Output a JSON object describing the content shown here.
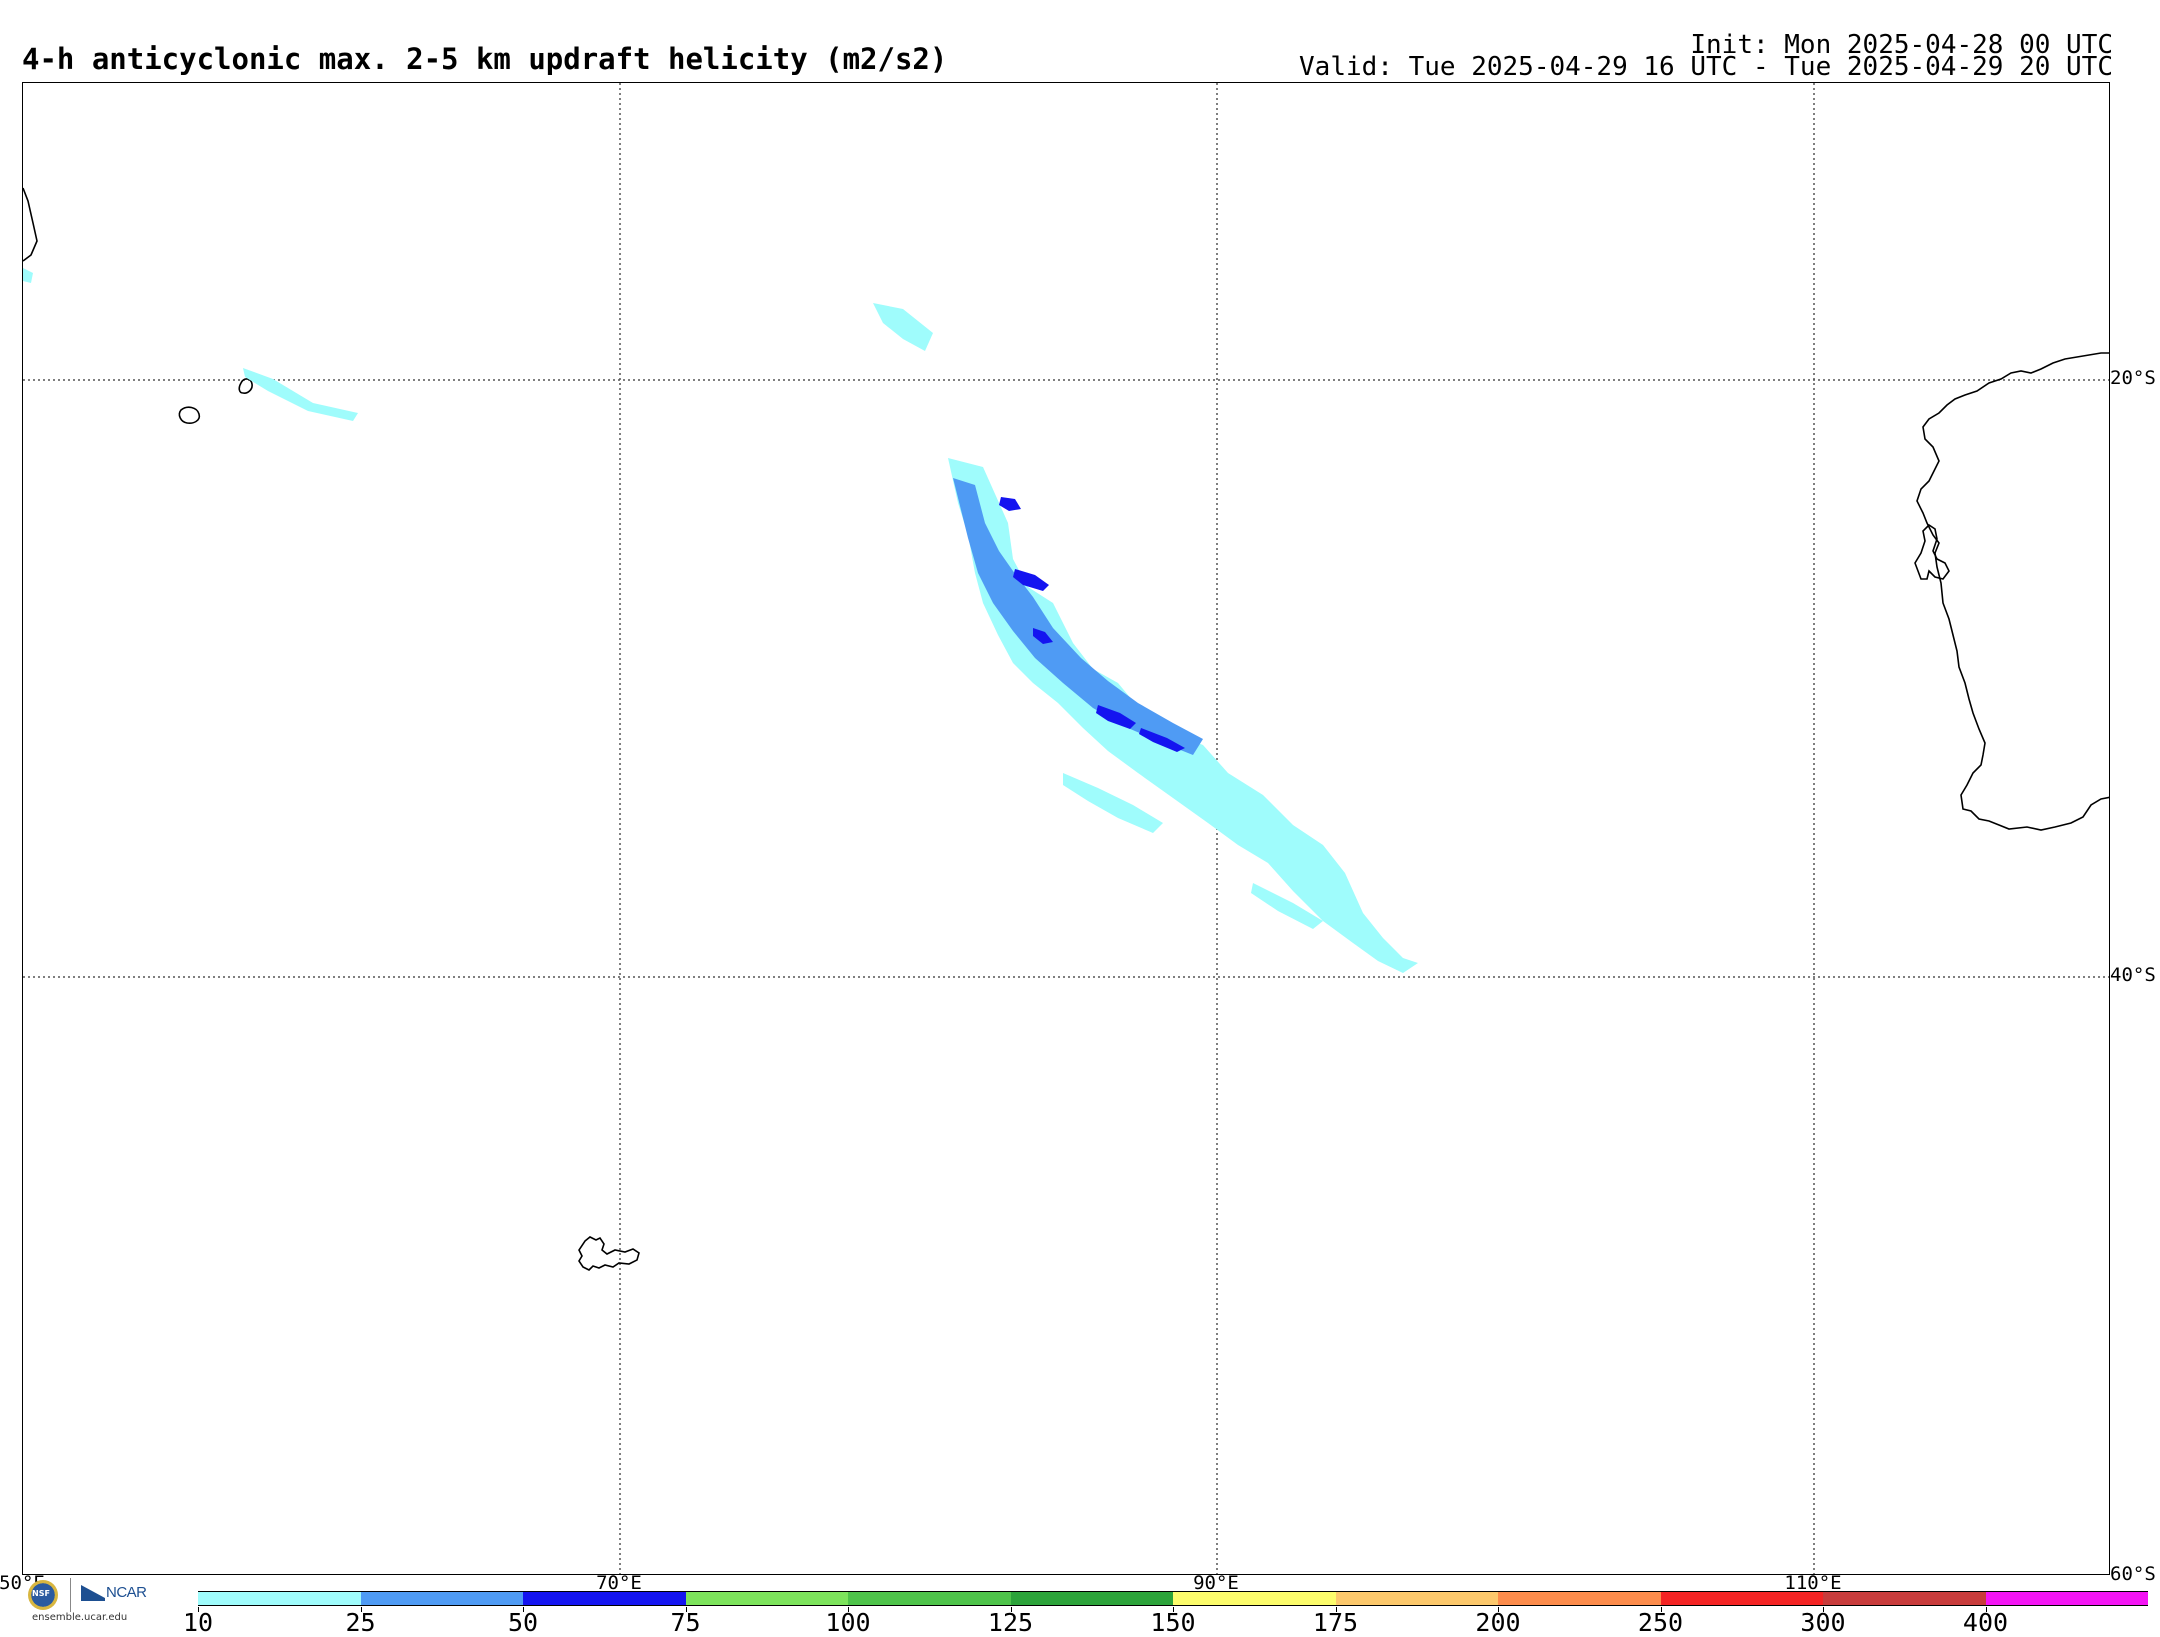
{
  "header": {
    "title": "4-h anticyclonic max. 2-5 km updraft helicity (m2/s2)",
    "init": "Init: Mon 2025-04-28 00 UTC",
    "valid": "Valid: Tue 2025-04-29 16 UTC - Tue 2025-04-29 20 UTC"
  },
  "map": {
    "lat_labels": [
      "20°S",
      "40°S",
      "60°S"
    ],
    "lon_labels": [
      "50°E",
      "70°E",
      "90°E",
      "110°E"
    ],
    "coastline_color": "#000000",
    "gridline_color": "#555555"
  },
  "logos": {
    "nsf": "NSF",
    "ncar": "NCAR",
    "url": "ensemble.ucar.edu"
  },
  "colorbar": {
    "colors": [
      "#9ffcfc",
      "#4f9bf4",
      "#1414f0",
      "#7de35c",
      "#4ec34a",
      "#2ca33a",
      "#fcfc6c",
      "#fcc86c",
      "#fc8c4c",
      "#f42424",
      "#c83c3c",
      "#f414f4"
    ],
    "labels": [
      "10",
      "25",
      "50",
      "75",
      "100",
      "125",
      "150",
      "175",
      "200",
      "250",
      "300",
      "400"
    ]
  }
}
